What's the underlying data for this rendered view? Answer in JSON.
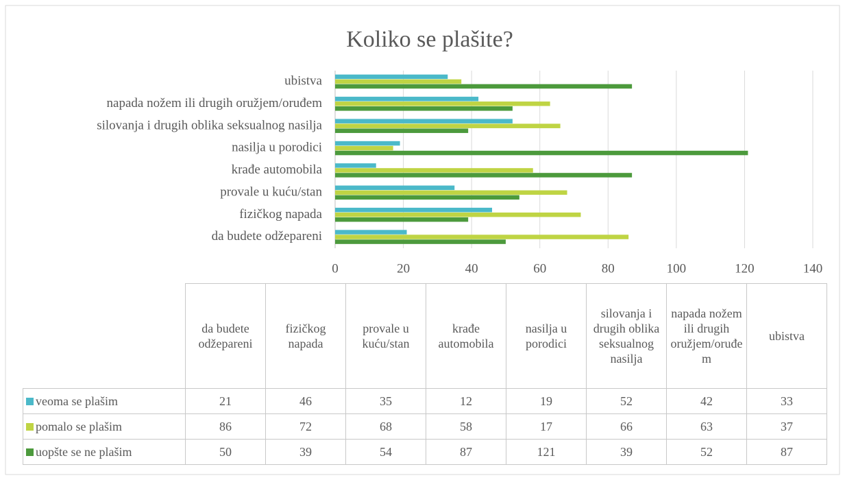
{
  "chart_data": {
    "type": "bar",
    "orientation": "horizontal",
    "title": "Koliko se plašite?",
    "categories": [
      "da budete odžepareni",
      "fizičkog napada",
      "provale u kuću/stan",
      "krađe automobila",
      "nasilja u porodici",
      "silovanja i drugih oblika seksualnog nasilja",
      "napada nožem ili drugih oružjem/oruđem",
      "ubistva"
    ],
    "series": [
      {
        "name": "veoma se plašim",
        "color": "#4bb9c9",
        "values": [
          21,
          46,
          35,
          12,
          19,
          52,
          42,
          33
        ]
      },
      {
        "name": "pomalo se plašim",
        "color": "#bfd444",
        "values": [
          86,
          72,
          68,
          58,
          17,
          66,
          63,
          37
        ]
      },
      {
        "name": "uopšte se ne plašim",
        "color": "#4c9a3c",
        "values": [
          50,
          39,
          54,
          87,
          121,
          39,
          52,
          87
        ]
      }
    ],
    "xlim": [
      0,
      140
    ],
    "xticks": [
      0,
      20,
      40,
      60,
      80,
      100,
      120,
      140
    ],
    "grid": true
  }
}
